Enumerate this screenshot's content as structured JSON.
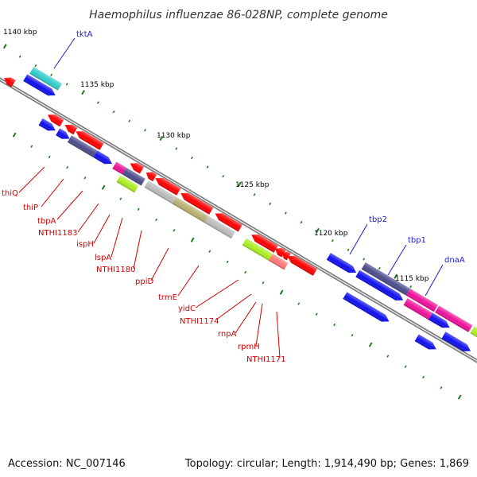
{
  "title": "Haemophilus influenzae 86-028NP, complete genome",
  "footer": {
    "accession": "Accession: NC_007146",
    "summary": "Topology: circular; Length: 1,914,490 bp; Genes: 1,869"
  },
  "scale_labels": [
    "1140 kbp",
    "1135 kbp",
    "1130 kbp",
    "1125 kbp",
    "1120 kbp",
    "1115 kbp"
  ],
  "gene_labels_red": [
    "thiQ",
    "thiP",
    "tbpA",
    "NTHI1183",
    "ispH",
    "lspA",
    "NTHI1180",
    "ppiD",
    "trmE",
    "yidC",
    "NTHI1174",
    "rnpA",
    "rpmH",
    "NTHI1171"
  ],
  "gene_labels_blue": [
    "tktA",
    "tbp2",
    "tbp1",
    "dnaA"
  ],
  "colors": {
    "backbone": "#7a7a7a",
    "tick": "#1f7a1f",
    "forward": "#ff0000",
    "reverse": "#1010ee",
    "label_red": "#d40000",
    "label_blue": "#1a1ad0",
    "cyan": "#33cccc",
    "slate": "#4c4c8c",
    "magenta": "#ee1199",
    "lime": "#aaee22",
    "khaki": "#b8b070",
    "silver": "#bbbbbb",
    "pink": "#ff7777"
  }
}
